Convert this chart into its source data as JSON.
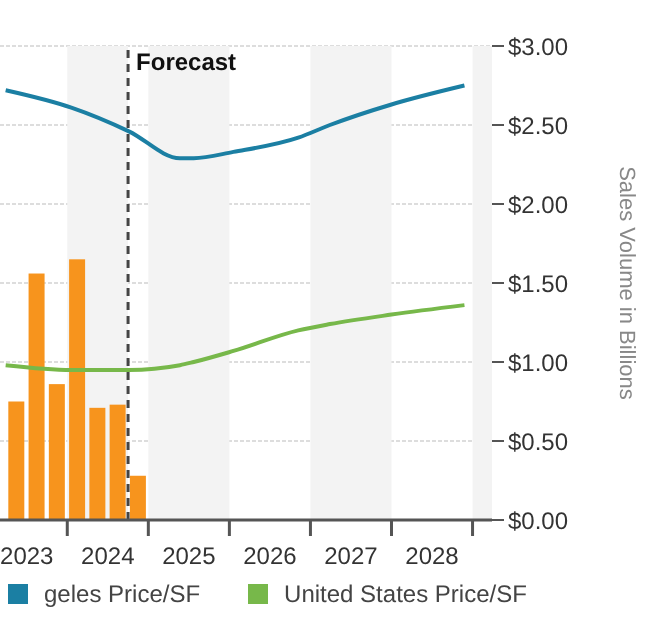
{
  "chart_data": {
    "type": "line",
    "ylabel": "Sales Volume in Billions",
    "x": [
      2023.24,
      2024.05,
      2024.76,
      2025.39,
      2025.56,
      2026.05,
      2026.85,
      2027.24,
      2028.0,
      2028.9
    ],
    "series": [
      {
        "name": "geles Price/SF",
        "color": "#1b7fa3",
        "values": [
          2.72,
          2.61,
          2.46,
          2.29,
          2.29,
          2.33,
          2.42,
          2.5,
          2.63,
          2.75
        ]
      },
      {
        "name": "United States Price/SF",
        "color": "#77b84a",
        "values": [
          0.98,
          0.95,
          0.95,
          0.98,
          1.0,
          1.07,
          1.2,
          1.24,
          1.3,
          1.36
        ]
      },
      {
        "type": "bar",
        "color": "#f7941d",
        "x": [
          2023.375,
          2023.625,
          2023.875,
          2024.125,
          2024.375,
          2024.625,
          2024.875
        ],
        "values": [
          0.75,
          1.56,
          0.86,
          1.65,
          0.71,
          0.73,
          0.28
        ]
      }
    ],
    "xlim": [
      2023.17,
      2029.24
    ],
    "xticks": [
      {
        "value": 2023.5,
        "label": "2023"
      },
      {
        "value": 2024,
        "label": null
      },
      {
        "value": 2024.5,
        "label": "2024"
      },
      {
        "value": 2025,
        "label": null
      },
      {
        "value": 2025.5,
        "label": "2025"
      },
      {
        "value": 2026,
        "label": null
      },
      {
        "value": 2026.5,
        "label": "2026"
      },
      {
        "value": 2027,
        "label": null
      },
      {
        "value": 2027.5,
        "label": "2027"
      },
      {
        "value": 2028,
        "label": null
      },
      {
        "value": 2028.5,
        "label": "2028"
      },
      {
        "value": 2029,
        "label": null
      }
    ],
    "ylim": [
      0,
      3
    ],
    "yticks": [
      {
        "value": 0,
        "label": "$0.00"
      },
      {
        "value": 0.5,
        "label": "$0.50"
      },
      {
        "value": 1,
        "label": "$1.00"
      },
      {
        "value": 1.5,
        "label": "$1.50"
      },
      {
        "value": 2,
        "label": "$2.00"
      },
      {
        "value": 2.5,
        "label": "$2.50"
      },
      {
        "value": 3,
        "label": "$3.00"
      }
    ],
    "ref_lines": [
      {
        "axis": "x",
        "value": 2024.75,
        "label": "Forecast",
        "color": "#444444",
        "line_style": "dashed"
      }
    ],
    "bands": [
      {
        "axis": "x",
        "from": 2024,
        "to": 2024.75,
        "color": "#f3f3f3"
      },
      {
        "axis": "x",
        "from": 2025,
        "to": 2026,
        "color": "#f3f3f3"
      },
      {
        "axis": "x",
        "from": 2027,
        "to": 2028,
        "color": "#f3f3f3"
      },
      {
        "axis": "x",
        "from": 2029,
        "to": 2029.24,
        "color": "#f3f3f3"
      }
    ],
    "grid": "y",
    "legend": "bottom"
  }
}
